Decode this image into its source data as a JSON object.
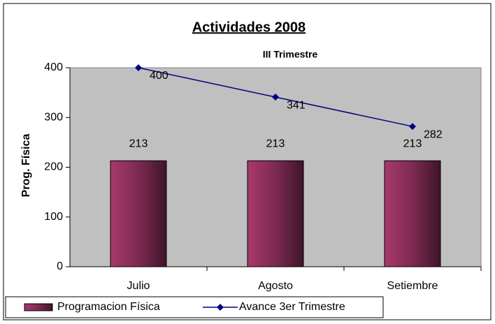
{
  "chart_data": {
    "type": "bar",
    "title": "Actividades 2008",
    "subtitle": "III Trimestre",
    "y_label": "Prog. Física",
    "categories": [
      "Julio",
      "Agosto",
      "Setiembre"
    ],
    "series": [
      {
        "name": "Programacion Física",
        "type": "bar",
        "color": "#8e2f5c",
        "values": [
          213,
          213,
          213
        ]
      },
      {
        "name": "Avance 3er Trimestre",
        "type": "line",
        "color": "#000080",
        "values": [
          400,
          341,
          282
        ]
      }
    ],
    "ylim": [
      0,
      400
    ],
    "yticks": [
      0,
      100,
      200,
      300,
      400
    ],
    "grid": false,
    "legend": "bottom-left"
  }
}
